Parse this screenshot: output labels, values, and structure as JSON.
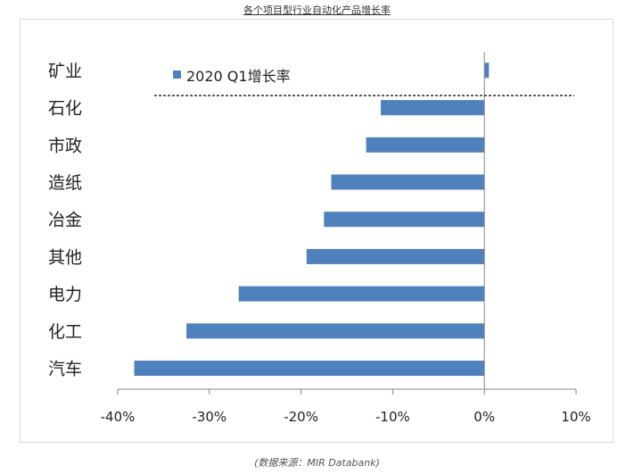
{
  "title": "各个项目型行业自动化产品增长率",
  "source": "(数据来源：MIR Databank)",
  "colors": {
    "bar": "#4f81bd",
    "axis": "#868686",
    "text": "#222222"
  },
  "chart_data": {
    "type": "bar",
    "orientation": "horizontal",
    "categories": [
      "矿业",
      "石化",
      "市政",
      "造纸",
      "冶金",
      "其他",
      "电力",
      "化工",
      "汽车"
    ],
    "series": [
      {
        "name": "2020 Q1增长率",
        "values": [
          0.5,
          -11.3,
          -12.9,
          -16.7,
          -17.5,
          -19.4,
          -26.8,
          -32.5,
          -38.2
        ]
      }
    ],
    "xlim": [
      -40,
      10
    ],
    "xticks": [
      -40,
      -30,
      -20,
      -10,
      0,
      10
    ],
    "xtick_labels": [
      "-40%",
      "-30%",
      "-20%",
      "-10%",
      "0%",
      "10%"
    ],
    "grid": false,
    "legend_position": "top-left",
    "annotation": "dashed horizontal separator line below 矿业"
  }
}
